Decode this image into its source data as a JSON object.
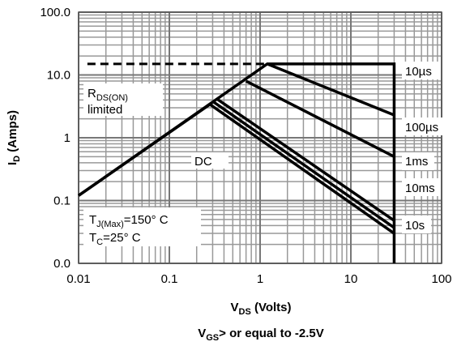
{
  "chart_data": {
    "type": "line",
    "log_x": true,
    "log_y": true,
    "grid": true,
    "xlim": [
      0.01,
      100
    ],
    "ylim": [
      0.01,
      100
    ],
    "xticks": [
      0.01,
      0.1,
      1,
      10,
      100
    ],
    "yticks": [
      {
        "value": 0.01,
        "label": "0.0"
      },
      0.1,
      1,
      {
        "value": 10,
        "label": "10.0"
      },
      {
        "value": 100,
        "label": "100.0"
      }
    ],
    "x_label": [
      "V",
      "DS",
      " (Volts)"
    ],
    "y_label": [
      "I",
      "D",
      " (Amps)"
    ],
    "footer": [
      "V",
      "GS",
      "> or equal to -2.5V"
    ],
    "annotations": {
      "rds": [
        "R",
        "DS(ON)",
        "limited"
      ],
      "tj": [
        "T",
        "J(Max)",
        "=150° C"
      ],
      "tc": [
        "T",
        "C",
        "=25° C"
      ]
    },
    "dashed_limit": {
      "x": [
        0.0125,
        1.2
      ],
      "values": [
        15,
        15
      ],
      "color": "#000000"
    },
    "series": [
      {
        "name": "10µs",
        "color": "#000000",
        "x": [
          0.01,
          1.2,
          30,
          30
        ],
        "values": [
          0.12,
          15,
          15,
          0.01
        ]
      },
      {
        "name": "100µs",
        "color": "#000000",
        "x": [
          1.2,
          30
        ],
        "values": [
          15,
          2.3
        ]
      },
      {
        "name": "1ms",
        "color": "#000000",
        "x": [
          0.7,
          30
        ],
        "values": [
          8,
          0.5
        ]
      },
      {
        "name": "10ms",
        "color": "#000000",
        "x": [
          0.33,
          30
        ],
        "values": [
          4.2,
          0.048
        ]
      },
      {
        "name": "10s",
        "color": "#000000",
        "x": [
          0.3,
          30
        ],
        "values": [
          3.8,
          0.037
        ]
      },
      {
        "name": "DC",
        "color": "#000000",
        "x": [
          0.01,
          0.28,
          30
        ],
        "values": [
          0.12,
          3.4,
          0.03
        ]
      }
    ]
  }
}
